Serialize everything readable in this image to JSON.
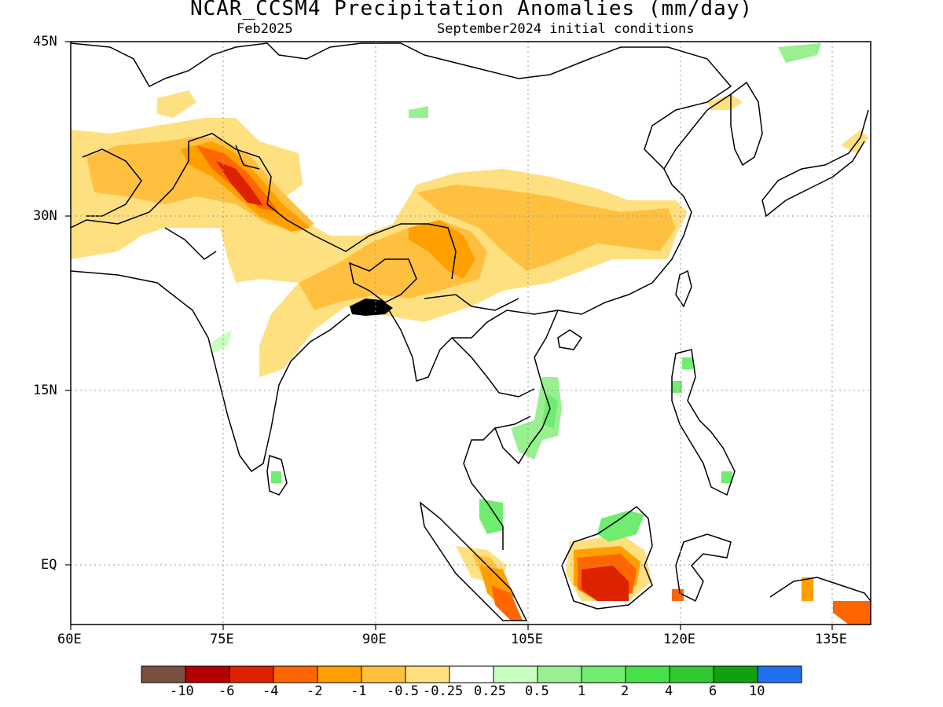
{
  "title": "NCAR_CCSM4 Precipitation Anomalies (mm/day)",
  "subtitle_left": "Feb2025",
  "subtitle_right": "September2024 initial conditions",
  "map": {
    "lon_range": [
      60,
      140
    ],
    "lat_range": [
      -6,
      45
    ],
    "lon_ticks": [
      "60E",
      "75E",
      "90E",
      "105E",
      "120E",
      "135E"
    ],
    "lat_ticks": [
      "45N",
      "30N",
      "15N",
      "EQ"
    ],
    "grid_style": "dotted"
  },
  "colorbar": {
    "colors": [
      "#7a5040",
      "#b30000",
      "#dd2200",
      "#ff6600",
      "#ffa000",
      "#ffc040",
      "#ffe080",
      "#ffffff",
      "#c8ffc0",
      "#98f090",
      "#70ec70",
      "#48e048",
      "#30c830",
      "#10a010",
      "#2070f0"
    ],
    "labels": [
      "-10",
      "-6",
      "-4",
      "-2",
      "-1",
      "-0.5",
      "-0.25",
      "0.25",
      "0.5",
      "1",
      "2",
      "4",
      "6",
      "10"
    ]
  }
}
